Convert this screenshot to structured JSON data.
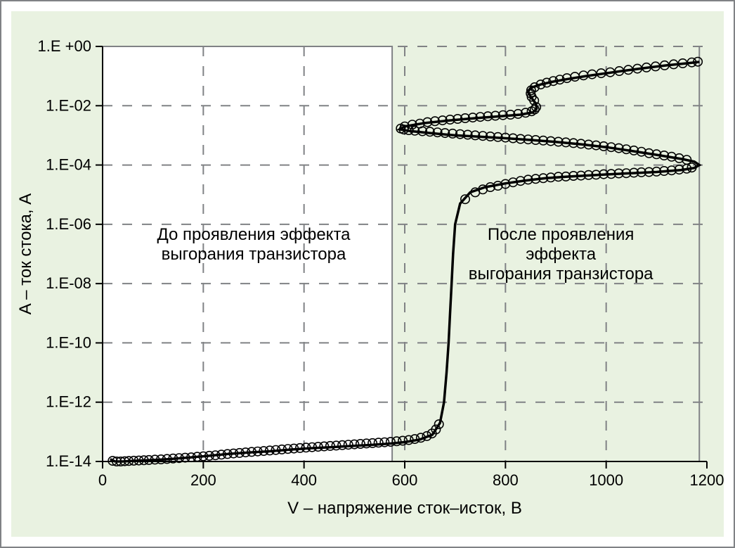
{
  "chart": {
    "type": "line-scatter",
    "background_color": "#e9f2e1",
    "plot_background_left": "#ffffff",
    "plot_background_right": "#e9f2e1",
    "outer_border_color": "#808285",
    "grid_color": "#808285",
    "axis_color": "#000000",
    "series_color": "#000000",
    "line_width": 3.5,
    "marker_size": 6.2,
    "marker_style": "open-circle",
    "title_fontsize": 24,
    "tick_fontsize": 22,
    "annotation_fontsize": 24,
    "xlabel": "V – напряжение сток–исток, В",
    "ylabel": "A – ток стока, А",
    "xlim": [
      0,
      1200
    ],
    "xticks": [
      0,
      200,
      400,
      600,
      800,
      1000,
      1200
    ],
    "xtick_labels": [
      "0",
      "200",
      "400",
      "600",
      "800",
      "1000",
      "1200"
    ],
    "yscale": "log",
    "ylim": [
      1e-14,
      1.0
    ],
    "yticks": [
      1e-14,
      1e-12,
      1e-10,
      1e-08,
      1e-06,
      0.0001,
      0.01,
      1.0
    ],
    "ytick_labels": [
      "1.E-14",
      "1.E-12",
      "1.E-10",
      "1.E-08",
      "1.E-06",
      "1.E-04",
      "1.E-02",
      "1.E +00"
    ],
    "shaded_region": {
      "x_from": 0,
      "x_to": 575,
      "fill": "#ffffff"
    },
    "right_border_x": 1185,
    "annotations": {
      "before": {
        "lines": [
          "До проявления эффекта",
          "выгорания транзистора"
        ],
        "x": 300,
        "y_value": 3e-07
      },
      "after": {
        "lines": [
          "После проявления",
          "эффекта",
          "выгорания  транзистора"
        ],
        "x": 910,
        "y_value": 3e-07
      }
    },
    "series_line": [
      [
        15,
        1.2e-14
      ],
      [
        25,
        1e-14
      ],
      [
        40,
        1e-14
      ],
      [
        60,
        1.05e-14
      ],
      [
        90,
        1.1e-14
      ],
      [
        130,
        1.2e-14
      ],
      [
        170,
        1.35e-14
      ],
      [
        210,
        1.55e-14
      ],
      [
        250,
        1.8e-14
      ],
      [
        290,
        2e-14
      ],
      [
        330,
        2.2e-14
      ],
      [
        370,
        2.5e-14
      ],
      [
        410,
        2.8e-14
      ],
      [
        450,
        3e-14
      ],
      [
        490,
        3.3e-14
      ],
      [
        530,
        3.6e-14
      ],
      [
        570,
        4e-14
      ],
      [
        600,
        4.5e-14
      ],
      [
        630,
        5.5e-14
      ],
      [
        655,
        8e-14
      ],
      [
        670,
        2e-13
      ],
      [
        678,
        1e-12
      ],
      [
        683,
        1e-11
      ],
      [
        687,
        1e-10
      ],
      [
        690,
        1e-09
      ],
      [
        693,
        1e-08
      ],
      [
        696,
        1e-07
      ],
      [
        700,
        1e-06
      ],
      [
        710,
        5e-06
      ],
      [
        730,
        1.2e-05
      ],
      [
        760,
        1.8e-05
      ],
      [
        800,
        2.4e-05
      ],
      [
        840,
        3e-05
      ],
      [
        880,
        3.6e-05
      ],
      [
        920,
        4e-05
      ],
      [
        960,
        4.4e-05
      ],
      [
        1000,
        4.8e-05
      ],
      [
        1050,
        5.3e-05
      ],
      [
        1100,
        5.8e-05
      ],
      [
        1150,
        6.8e-05
      ],
      [
        1175,
        8e-05
      ],
      [
        1185,
        0.0001
      ],
      [
        1175,
        0.00013
      ],
      [
        1150,
        0.00016
      ],
      [
        1100,
        0.00022
      ],
      [
        1050,
        0.0003
      ],
      [
        1000,
        0.0004
      ],
      [
        950,
        0.0005
      ],
      [
        900,
        0.0006
      ],
      [
        850,
        0.0007
      ],
      [
        800,
        0.0008
      ],
      [
        750,
        0.0009
      ],
      [
        700,
        0.001
      ],
      [
        650,
        0.0012
      ],
      [
        610,
        0.0014
      ],
      [
        590,
        0.0016
      ],
      [
        600,
        0.002
      ],
      [
        640,
        0.0026
      ],
      [
        690,
        0.0032
      ],
      [
        740,
        0.0038
      ],
      [
        790,
        0.0044
      ],
      [
        830,
        0.005
      ],
      [
        855,
        0.006
      ],
      [
        862,
        0.008
      ],
      [
        860,
        0.012
      ],
      [
        850,
        0.02
      ],
      [
        845,
        0.03
      ],
      [
        850,
        0.04
      ],
      [
        870,
        0.052
      ],
      [
        895,
        0.065
      ],
      [
        925,
        0.08
      ],
      [
        960,
        0.1
      ],
      [
        1000,
        0.125
      ],
      [
        1040,
        0.155
      ],
      [
        1080,
        0.19
      ],
      [
        1120,
        0.23
      ],
      [
        1160,
        0.27
      ],
      [
        1185,
        0.3
      ]
    ],
    "series_markers": [
      [
        20,
        1.05e-14
      ],
      [
        28,
        1e-14
      ],
      [
        36,
        1e-14
      ],
      [
        44,
        1.02e-14
      ],
      [
        52,
        1.04e-14
      ],
      [
        62,
        1.06e-14
      ],
      [
        72,
        1.08e-14
      ],
      [
        82,
        1.1e-14
      ],
      [
        92,
        1.12e-14
      ],
      [
        104,
        1.15e-14
      ],
      [
        116,
        1.18e-14
      ],
      [
        128,
        1.22e-14
      ],
      [
        140,
        1.26e-14
      ],
      [
        152,
        1.3e-14
      ],
      [
        164,
        1.34e-14
      ],
      [
        176,
        1.38e-14
      ],
      [
        188,
        1.44e-14
      ],
      [
        200,
        1.5e-14
      ],
      [
        212,
        1.56e-14
      ],
      [
        224,
        1.62e-14
      ],
      [
        236,
        1.7e-14
      ],
      [
        248,
        1.78e-14
      ],
      [
        260,
        1.86e-14
      ],
      [
        272,
        1.94e-14
      ],
      [
        284,
        2.02e-14
      ],
      [
        296,
        2.1e-14
      ],
      [
        308,
        2.18e-14
      ],
      [
        320,
        2.26e-14
      ],
      [
        332,
        2.34e-14
      ],
      [
        344,
        2.44e-14
      ],
      [
        356,
        2.54e-14
      ],
      [
        368,
        2.64e-14
      ],
      [
        380,
        2.74e-14
      ],
      [
        392,
        2.84e-14
      ],
      [
        404,
        2.94e-14
      ],
      [
        416,
        3.04e-14
      ],
      [
        428,
        3.14e-14
      ],
      [
        440,
        3.24e-14
      ],
      [
        452,
        3.34e-14
      ],
      [
        464,
        3.44e-14
      ],
      [
        476,
        3.56e-14
      ],
      [
        488,
        3.68e-14
      ],
      [
        500,
        3.8e-14
      ],
      [
        512,
        3.92e-14
      ],
      [
        524,
        4.04e-14
      ],
      [
        536,
        4.16e-14
      ],
      [
        548,
        4.3e-14
      ],
      [
        560,
        4.44e-14
      ],
      [
        572,
        4.6e-14
      ],
      [
        584,
        4.8e-14
      ],
      [
        596,
        5e-14
      ],
      [
        608,
        5.3e-14
      ],
      [
        620,
        5.7e-14
      ],
      [
        632,
        6.3e-14
      ],
      [
        644,
        7.2e-14
      ],
      [
        654,
        8.8e-14
      ],
      [
        662,
        1.2e-13
      ],
      [
        668,
        1.8e-13
      ],
      [
        720,
        7e-06
      ],
      [
        740,
        1.2e-05
      ],
      [
        755,
        1.5e-05
      ],
      [
        770,
        1.8e-05
      ],
      [
        785,
        2e-05
      ],
      [
        800,
        2.3e-05
      ],
      [
        815,
        2.6e-05
      ],
      [
        830,
        2.9e-05
      ],
      [
        845,
        3.2e-05
      ],
      [
        860,
        3.4e-05
      ],
      [
        875,
        3.6e-05
      ],
      [
        890,
        3.8e-05
      ],
      [
        905,
        4e-05
      ],
      [
        920,
        4.1e-05
      ],
      [
        935,
        4.3e-05
      ],
      [
        950,
        4.4e-05
      ],
      [
        965,
        4.6e-05
      ],
      [
        980,
        4.7e-05
      ],
      [
        995,
        4.9e-05
      ],
      [
        1010,
        5e-05
      ],
      [
        1025,
        5.2e-05
      ],
      [
        1040,
        5.3e-05
      ],
      [
        1055,
        5.5e-05
      ],
      [
        1070,
        5.7e-05
      ],
      [
        1085,
        5.8e-05
      ],
      [
        1100,
        6e-05
      ],
      [
        1115,
        6.3e-05
      ],
      [
        1130,
        6.6e-05
      ],
      [
        1145,
        7e-05
      ],
      [
        1160,
        7.5e-05
      ],
      [
        1170,
        8.2e-05
      ],
      [
        1160,
        0.00015
      ],
      [
        1145,
        0.00017
      ],
      [
        1130,
        0.00019
      ],
      [
        1115,
        0.00021
      ],
      [
        1100,
        0.00023
      ],
      [
        1085,
        0.00025
      ],
      [
        1070,
        0.00028
      ],
      [
        1055,
        0.00031
      ],
      [
        1040,
        0.00034
      ],
      [
        1025,
        0.00037
      ],
      [
        1010,
        0.0004
      ],
      [
        995,
        0.00043
      ],
      [
        980,
        0.00046
      ],
      [
        965,
        0.00049
      ],
      [
        950,
        0.00052
      ],
      [
        935,
        0.00055
      ],
      [
        920,
        0.00058
      ],
      [
        905,
        0.00061
      ],
      [
        890,
        0.00064
      ],
      [
        875,
        0.00067
      ],
      [
        860,
        0.0007
      ],
      [
        845,
        0.00073
      ],
      [
        830,
        0.00076
      ],
      [
        815,
        0.0008
      ],
      [
        800,
        0.00084
      ],
      [
        785,
        0.00088
      ],
      [
        770,
        0.00092
      ],
      [
        755,
        0.00096
      ],
      [
        740,
        0.001
      ],
      [
        725,
        0.00105
      ],
      [
        710,
        0.0011
      ],
      [
        695,
        0.00115
      ],
      [
        680,
        0.0012
      ],
      [
        665,
        0.00126
      ],
      [
        650,
        0.00132
      ],
      [
        635,
        0.00138
      ],
      [
        620,
        0.00144
      ],
      [
        608,
        0.0015
      ],
      [
        598,
        0.00158
      ],
      [
        592,
        0.0017
      ],
      [
        600,
        0.002
      ],
      [
        615,
        0.0023
      ],
      [
        630,
        0.0025
      ],
      [
        645,
        0.0028
      ],
      [
        660,
        0.003
      ],
      [
        675,
        0.0032
      ],
      [
        690,
        0.0034
      ],
      [
        705,
        0.0036
      ],
      [
        720,
        0.0038
      ],
      [
        735,
        0.004
      ],
      [
        750,
        0.0042
      ],
      [
        765,
        0.0044
      ],
      [
        780,
        0.0046
      ],
      [
        795,
        0.0048
      ],
      [
        810,
        0.005
      ],
      [
        825,
        0.0053
      ],
      [
        840,
        0.0058
      ],
      [
        852,
        0.0065
      ],
      [
        858,
        0.0075
      ],
      [
        861,
        0.009
      ],
      [
        857,
        0.015
      ],
      [
        852,
        0.02
      ],
      [
        850,
        0.026
      ],
      [
        851,
        0.033
      ],
      [
        858,
        0.042
      ],
      [
        870,
        0.052
      ],
      [
        882,
        0.06
      ],
      [
        895,
        0.068
      ],
      [
        908,
        0.076
      ],
      [
        922,
        0.085
      ],
      [
        938,
        0.095
      ],
      [
        955,
        0.105
      ],
      [
        972,
        0.115
      ],
      [
        990,
        0.125
      ],
      [
        1008,
        0.135
      ],
      [
        1026,
        0.148
      ],
      [
        1044,
        0.162
      ],
      [
        1062,
        0.178
      ],
      [
        1080,
        0.195
      ],
      [
        1098,
        0.212
      ],
      [
        1116,
        0.23
      ],
      [
        1134,
        0.25
      ],
      [
        1152,
        0.27
      ],
      [
        1170,
        0.29
      ],
      [
        1182,
        0.305
      ]
    ]
  }
}
